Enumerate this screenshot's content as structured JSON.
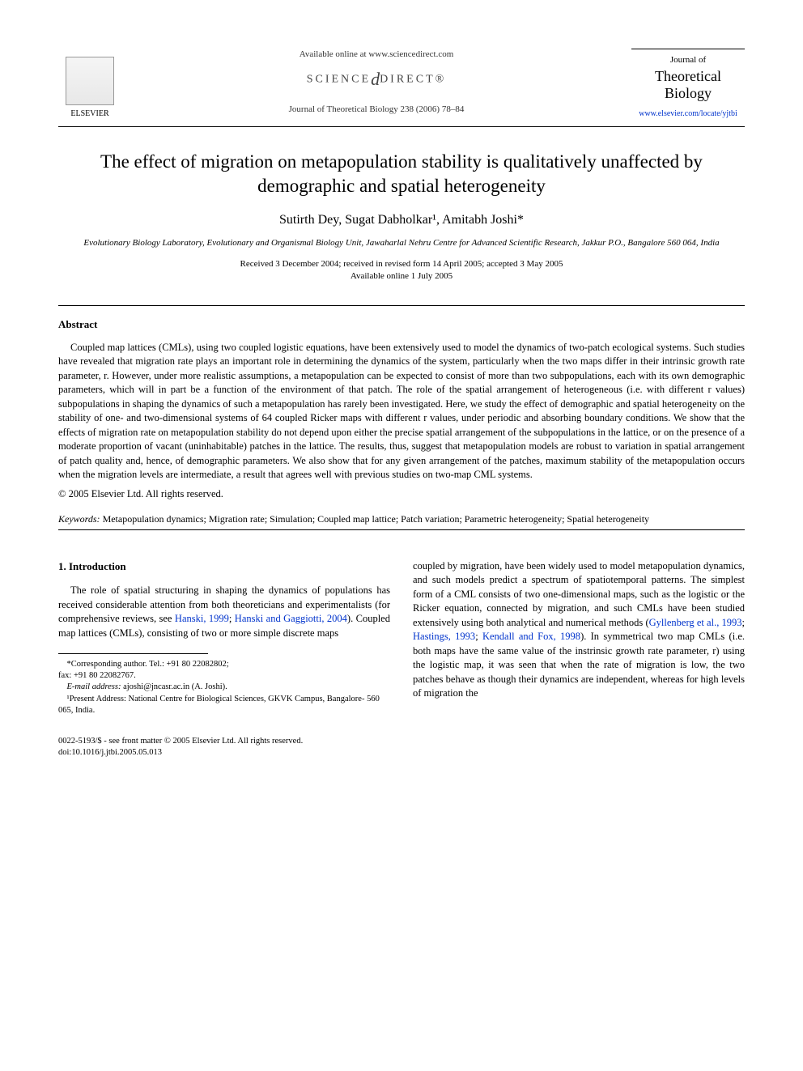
{
  "header": {
    "available_online": "Available online at www.sciencedirect.com",
    "science_direct": "SCIENCE",
    "science_direct2": "DIRECT®",
    "journal_ref": "Journal of Theoretical Biology 238 (2006) 78–84",
    "elsevier_label": "ELSEVIER",
    "journal_name_pre": "Journal of",
    "journal_name_line1": "Theoretical",
    "journal_name_line2": "Biology",
    "journal_url": "www.elsevier.com/locate/yjtbi"
  },
  "title": "The effect of migration on metapopulation stability is qualitatively unaffected by demographic and spatial heterogeneity",
  "authors": "Sutirth Dey, Sugat Dabholkar¹, Amitabh Joshi*",
  "affiliation": "Evolutionary Biology Laboratory, Evolutionary and Organismal Biology Unit, Jawaharlal Nehru Centre for Advanced Scientific Research, Jakkur P.O., Bangalore 560 064, India",
  "dates_line1": "Received 3 December 2004; received in revised form 14 April 2005; accepted 3 May 2005",
  "dates_line2": "Available online 1 July 2005",
  "abstract_head": "Abstract",
  "abstract_text": "Coupled map lattices (CMLs), using two coupled logistic equations, have been extensively used to model the dynamics of two-patch ecological systems. Such studies have revealed that migration rate plays an important role in determining the dynamics of the system, particularly when the two maps differ in their intrinsic growth rate parameter, r. However, under more realistic assumptions, a metapopulation can be expected to consist of more than two subpopulations, each with its own demographic parameters, which will in part be a function of the environment of that patch. The role of the spatial arrangement of heterogeneous (i.e. with different r values) subpopulations in shaping the dynamics of such a metapopulation has rarely been investigated. Here, we study the effect of demographic and spatial heterogeneity on the stability of one- and two-dimensional systems of 64 coupled Ricker maps with different r values, under periodic and absorbing boundary conditions. We show that the effects of migration rate on metapopulation stability do not depend upon either the precise spatial arrangement of the subpopulations in the lattice, or on the presence of a moderate proportion of vacant (uninhabitable) patches in the lattice. The results, thus, suggest that metapopulation models are robust to variation in spatial arrangement of patch quality and, hence, of demographic parameters. We also show that for any given arrangement of the patches, maximum stability of the metapopulation occurs when the migration levels are intermediate, a result that agrees well with previous studies on two-map CML systems.",
  "copyright": "© 2005 Elsevier Ltd. All rights reserved.",
  "keywords_label": "Keywords:",
  "keywords_text": " Metapopulation dynamics; Migration rate; Simulation; Coupled map lattice; Patch variation; Parametric heterogeneity; Spatial heterogeneity",
  "intro_head": "1. Introduction",
  "col1_para": "The role of spatial structuring in shaping the dynamics of populations has received considerable attention from both theoreticians and experimentalists (for comprehensive reviews, see ",
  "col1_cite1": "Hanski, 1999",
  "col1_mid1": "; ",
  "col1_cite2": "Hanski and Gaggiotti, 2004",
  "col1_end": "). Coupled map lattices (CMLs), consisting of two or more simple discrete maps",
  "col2_start": "coupled by migration, have been widely used to model metapopulation dynamics, and such models predict a spectrum of spatiotemporal patterns. The simplest form of a CML consists of two one-dimensional maps, such as the logistic or the Ricker equation, connected by migration, and such CMLs have been studied extensively using both analytical and numerical methods (",
  "col2_cite1": "Gyllenberg et al., 1993",
  "col2_mid1": "; ",
  "col2_cite2": "Hastings, 1993",
  "col2_mid2": "; ",
  "col2_cite3": "Kendall and Fox, 1998",
  "col2_end": "). In symmetrical two map CMLs (i.e. both maps have the same value of the instrinsic growth rate parameter, r) using the logistic map, it was seen that when the rate of migration is low, the two patches behave as though their dynamics are independent, whereas for high levels of migration the",
  "footnotes": {
    "corr_label": "*Corresponding author. Tel.: +91 80 22082802;",
    "fax": "fax: +91 80 22082767.",
    "email_label": "E-mail address:",
    "email_value": " ajoshi@jncasr.ac.in (A. Joshi).",
    "present_addr": "¹Present Address: National Centre for Biological Sciences, GKVK Campus, Bangalore- 560 065, India."
  },
  "footer": {
    "issn": "0022-5193/$ - see front matter © 2005 Elsevier Ltd. All rights reserved.",
    "doi": "doi:10.1016/j.jtbi.2005.05.013"
  }
}
